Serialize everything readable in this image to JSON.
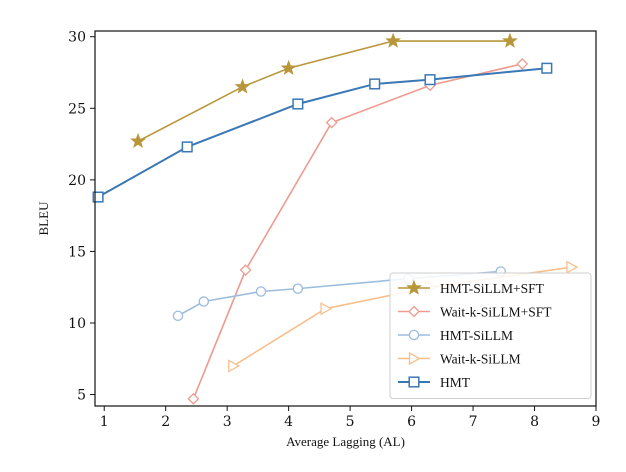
{
  "chart_data": {
    "type": "line",
    "xlabel": "Average Lagging (AL)",
    "ylabel": "BLEU",
    "xlim": [
      0.85,
      9.0
    ],
    "ylim": [
      4.2,
      30.4
    ],
    "xticks": [
      1,
      2,
      3,
      4,
      5,
      6,
      7,
      8,
      9
    ],
    "yticks": [
      5,
      10,
      15,
      20,
      25,
      30
    ],
    "grid": false,
    "legend_position": "lower-right",
    "series": [
      {
        "name": "HMT-SiLLM+SFT",
        "color": "#b8963a",
        "marker": "star",
        "x": [
          1.55,
          3.25,
          4.0,
          5.7,
          7.6
        ],
        "y": [
          22.7,
          26.5,
          27.8,
          29.7,
          29.7
        ]
      },
      {
        "name": "Wait-k-SiLLM+SFT",
        "color": "#ee9a8f",
        "marker": "diamond",
        "x": [
          2.45,
          3.3,
          4.7,
          6.3,
          7.8
        ],
        "y": [
          4.7,
          13.7,
          24.0,
          26.6,
          28.1
        ]
      },
      {
        "name": "HMT-SiLLM",
        "color": "#9cbcdd",
        "marker": "circle",
        "x": [
          2.2,
          2.62,
          3.55,
          4.15,
          5.95,
          7.45
        ],
        "y": [
          10.5,
          11.5,
          12.2,
          12.4,
          13.1,
          13.6
        ]
      },
      {
        "name": "Wait-k-SiLLM",
        "color": "#f6c08e",
        "marker": "triangle-right",
        "x": [
          3.1,
          4.6,
          6.3,
          8.6
        ],
        "y": [
          7.0,
          11.0,
          12.5,
          13.9
        ]
      },
      {
        "name": "HMT",
        "color": "#3a78b5",
        "marker": "square",
        "x": [
          0.9,
          2.35,
          4.15,
          5.4,
          6.3,
          8.2
        ],
        "y": [
          18.8,
          22.3,
          25.3,
          26.7,
          27.0,
          27.8
        ]
      }
    ]
  }
}
